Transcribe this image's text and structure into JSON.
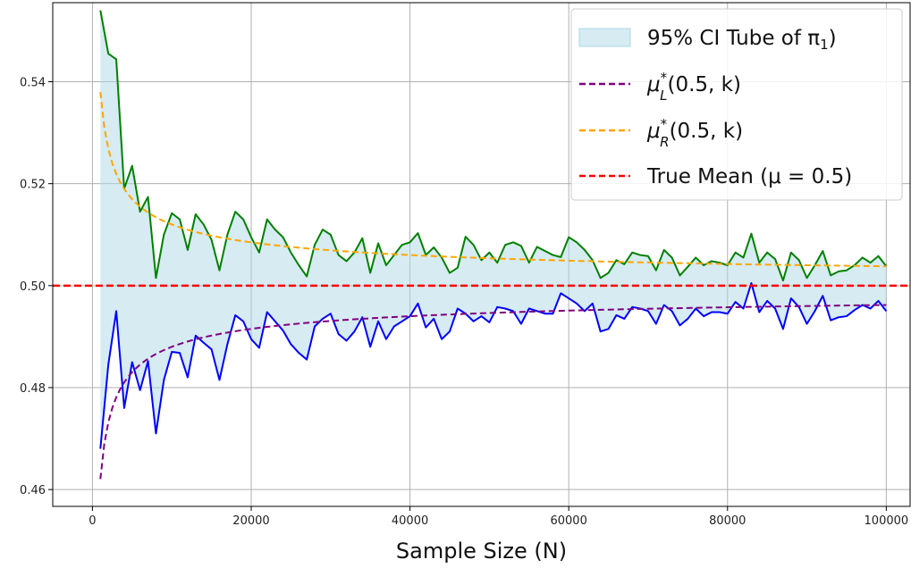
{
  "chart_data": {
    "type": "line",
    "xlabel": "Sample Size (N)",
    "ylabel": "",
    "xlim": [
      -5000,
      103000
    ],
    "ylim": [
      0.4567,
      0.5555
    ],
    "x_ticks": [
      0,
      20000,
      40000,
      60000,
      80000,
      100000
    ],
    "x_tick_labels": [
      "0",
      "20000",
      "40000",
      "60000",
      "80000",
      "100000"
    ],
    "y_ticks": [
      0.46,
      0.48,
      0.5,
      0.52,
      0.54
    ],
    "y_tick_labels": [
      "0.46",
      "0.48",
      "0.50",
      "0.52",
      "0.54"
    ],
    "grid": true,
    "legend": {
      "placement": "top-right",
      "entries": [
        {
          "label": "95% CI Tube of π",
          "subscript": "1",
          "suffix": ")",
          "style": "patch",
          "color": "#add8e6"
        },
        {
          "label": "μ",
          "sup": "*",
          "sub": "L",
          "suffix": "(0.5, k)",
          "style": "dashed",
          "color": "#800080"
        },
        {
          "label": "μ",
          "sup": "*",
          "sub": "R",
          "suffix": "(0.5, k)",
          "style": "dashed",
          "color": "#ffa500"
        },
        {
          "label": "True Mean (μ = 0.5)",
          "style": "dashed",
          "color": "#ff0000"
        }
      ]
    },
    "true_mean": 0.5,
    "upper_bound": {
      "color": "#008000",
      "points": [
        [
          1000,
          0.554
        ],
        [
          2000,
          0.5455
        ],
        [
          3000,
          0.5444
        ],
        [
          4000,
          0.519
        ],
        [
          5000,
          0.5235
        ],
        [
          6000,
          0.5145
        ],
        [
          7000,
          0.5174
        ],
        [
          8000,
          0.5015
        ],
        [
          9000,
          0.51
        ],
        [
          10000,
          0.5142
        ],
        [
          11000,
          0.513
        ],
        [
          12000,
          0.507
        ],
        [
          13000,
          0.514
        ],
        [
          14000,
          0.512
        ],
        [
          15000,
          0.509
        ],
        [
          16000,
          0.503
        ],
        [
          17000,
          0.51
        ],
        [
          18000,
          0.5145
        ],
        [
          19000,
          0.513
        ],
        [
          20000,
          0.5095
        ],
        [
          21000,
          0.5065
        ],
        [
          22000,
          0.513
        ],
        [
          23000,
          0.511
        ],
        [
          24000,
          0.5095
        ],
        [
          25000,
          0.5065
        ],
        [
          26000,
          0.504
        ],
        [
          27000,
          0.5018
        ],
        [
          28000,
          0.508
        ],
        [
          29000,
          0.511
        ],
        [
          30000,
          0.51
        ],
        [
          31000,
          0.506
        ],
        [
          32000,
          0.5048
        ],
        [
          33000,
          0.5065
        ],
        [
          34000,
          0.5093
        ],
        [
          35000,
          0.5025
        ],
        [
          36000,
          0.5083
        ],
        [
          37000,
          0.504
        ],
        [
          38000,
          0.506
        ],
        [
          39000,
          0.508
        ],
        [
          40000,
          0.5085
        ],
        [
          41000,
          0.5103
        ],
        [
          42000,
          0.506
        ],
        [
          43000,
          0.5075
        ],
        [
          44000,
          0.5055
        ],
        [
          45000,
          0.5025
        ],
        [
          46000,
          0.5035
        ],
        [
          47000,
          0.5096
        ],
        [
          48000,
          0.508
        ],
        [
          49000,
          0.505
        ],
        [
          50000,
          0.5065
        ],
        [
          51000,
          0.5045
        ],
        [
          52000,
          0.508
        ],
        [
          53000,
          0.5085
        ],
        [
          54000,
          0.5078
        ],
        [
          55000,
          0.5045
        ],
        [
          56000,
          0.5076
        ],
        [
          57000,
          0.5068
        ],
        [
          58000,
          0.506
        ],
        [
          59000,
          0.5056
        ],
        [
          60000,
          0.5095
        ],
        [
          61000,
          0.5085
        ],
        [
          62000,
          0.507
        ],
        [
          63000,
          0.505
        ],
        [
          64000,
          0.5015
        ],
        [
          65000,
          0.5025
        ],
        [
          66000,
          0.505
        ],
        [
          67000,
          0.5042
        ],
        [
          68000,
          0.5065
        ],
        [
          69000,
          0.506
        ],
        [
          70000,
          0.5058
        ],
        [
          71000,
          0.503
        ],
        [
          72000,
          0.507
        ],
        [
          73000,
          0.5055
        ],
        [
          74000,
          0.502
        ],
        [
          75000,
          0.5037
        ],
        [
          76000,
          0.5055
        ],
        [
          77000,
          0.504
        ],
        [
          78000,
          0.5048
        ],
        [
          79000,
          0.5045
        ],
        [
          80000,
          0.504
        ],
        [
          81000,
          0.5065
        ],
        [
          82000,
          0.5055
        ],
        [
          83000,
          0.5102
        ],
        [
          84000,
          0.5045
        ],
        [
          85000,
          0.5065
        ],
        [
          86000,
          0.5052
        ],
        [
          87000,
          0.501
        ],
        [
          88000,
          0.5065
        ],
        [
          89000,
          0.505
        ],
        [
          90000,
          0.5015
        ],
        [
          91000,
          0.504
        ],
        [
          92000,
          0.5068
        ],
        [
          93000,
          0.502
        ],
        [
          94000,
          0.5028
        ],
        [
          95000,
          0.503
        ],
        [
          96000,
          0.504
        ],
        [
          97000,
          0.5055
        ],
        [
          98000,
          0.5045
        ],
        [
          99000,
          0.5058
        ],
        [
          100000,
          0.5038
        ]
      ]
    },
    "lower_bound": {
      "color": "#0000ff",
      "points": [
        [
          1000,
          0.468
        ],
        [
          2000,
          0.4845
        ],
        [
          3000,
          0.495
        ],
        [
          4000,
          0.476
        ],
        [
          5000,
          0.485
        ],
        [
          6000,
          0.4795
        ],
        [
          7000,
          0.4852
        ],
        [
          8000,
          0.471
        ],
        [
          9000,
          0.4815
        ],
        [
          10000,
          0.487
        ],
        [
          11000,
          0.4868
        ],
        [
          12000,
          0.482
        ],
        [
          13000,
          0.4902
        ],
        [
          14000,
          0.4888
        ],
        [
          15000,
          0.4875
        ],
        [
          16000,
          0.4815
        ],
        [
          17000,
          0.4885
        ],
        [
          18000,
          0.4942
        ],
        [
          19000,
          0.493
        ],
        [
          20000,
          0.4895
        ],
        [
          21000,
          0.4878
        ],
        [
          22000,
          0.4948
        ],
        [
          23000,
          0.493
        ],
        [
          24000,
          0.4912
        ],
        [
          25000,
          0.4885
        ],
        [
          26000,
          0.4868
        ],
        [
          27000,
          0.4855
        ],
        [
          28000,
          0.492
        ],
        [
          29000,
          0.4935
        ],
        [
          30000,
          0.4945
        ],
        [
          31000,
          0.4905
        ],
        [
          32000,
          0.4892
        ],
        [
          33000,
          0.491
        ],
        [
          34000,
          0.4938
        ],
        [
          35000,
          0.488
        ],
        [
          36000,
          0.493
        ],
        [
          37000,
          0.4895
        ],
        [
          38000,
          0.492
        ],
        [
          39000,
          0.493
        ],
        [
          40000,
          0.494
        ],
        [
          41000,
          0.4965
        ],
        [
          42000,
          0.4918
        ],
        [
          43000,
          0.4935
        ],
        [
          44000,
          0.4895
        ],
        [
          45000,
          0.491
        ],
        [
          46000,
          0.4955
        ],
        [
          47000,
          0.4945
        ],
        [
          48000,
          0.493
        ],
        [
          49000,
          0.494
        ],
        [
          50000,
          0.4928
        ],
        [
          51000,
          0.4958
        ],
        [
          52000,
          0.4955
        ],
        [
          53000,
          0.495
        ],
        [
          54000,
          0.4925
        ],
        [
          55000,
          0.4955
        ],
        [
          56000,
          0.495
        ],
        [
          57000,
          0.4945
        ],
        [
          58000,
          0.4945
        ],
        [
          59000,
          0.4985
        ],
        [
          60000,
          0.4975
        ],
        [
          61000,
          0.4965
        ],
        [
          62000,
          0.495
        ],
        [
          63000,
          0.4965
        ],
        [
          64000,
          0.491
        ],
        [
          65000,
          0.4915
        ],
        [
          66000,
          0.4942
        ],
        [
          67000,
          0.4935
        ],
        [
          68000,
          0.4958
        ],
        [
          69000,
          0.4955
        ],
        [
          70000,
          0.495
        ],
        [
          71000,
          0.4925
        ],
        [
          72000,
          0.4962
        ],
        [
          73000,
          0.495
        ],
        [
          74000,
          0.4922
        ],
        [
          75000,
          0.4935
        ],
        [
          76000,
          0.4955
        ],
        [
          77000,
          0.494
        ],
        [
          78000,
          0.4948
        ],
        [
          79000,
          0.4948
        ],
        [
          80000,
          0.4945
        ],
        [
          81000,
          0.4968
        ],
        [
          82000,
          0.4955
        ],
        [
          83000,
          0.5005
        ],
        [
          84000,
          0.4948
        ],
        [
          85000,
          0.497
        ],
        [
          86000,
          0.4955
        ],
        [
          87000,
          0.4915
        ],
        [
          88000,
          0.4975
        ],
        [
          89000,
          0.4958
        ],
        [
          90000,
          0.4925
        ],
        [
          91000,
          0.495
        ],
        [
          92000,
          0.498
        ],
        [
          93000,
          0.4932
        ],
        [
          94000,
          0.4938
        ],
        [
          95000,
          0.494
        ],
        [
          96000,
          0.4952
        ],
        [
          97000,
          0.4962
        ],
        [
          98000,
          0.4955
        ],
        [
          99000,
          0.497
        ],
        [
          100000,
          0.495
        ]
      ]
    }
  }
}
